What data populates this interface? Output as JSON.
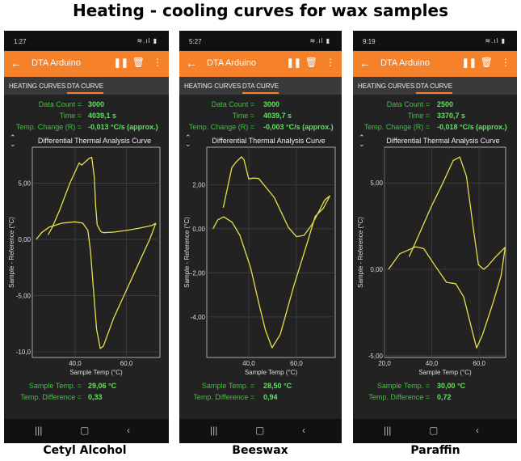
{
  "figure_title": "Heating - cooling curves for wax samples",
  "app": {
    "title": "DTA Arduino",
    "tabs": [
      "HEATING CURVES",
      "DTA CURVE"
    ],
    "active_tab": "DTA CURVE",
    "labels": {
      "data_count": "Data Count =",
      "time": "Time =",
      "temp_change": "Temp. Change (R) =",
      "sample_temp": "Sample Temp. =",
      "temp_difference": "Temp. Difference ="
    },
    "chart_title": "Differential Thermal Analysis Curve",
    "xlabel": "Sample Temp (°C)",
    "ylabel": "Sample - Reference (°C)",
    "icons": [
      "back-arrow-icon",
      "pause-icon",
      "trash-icon",
      "more-vert-icon",
      "expand-icon",
      "recents-icon",
      "home-icon",
      "back-icon"
    ],
    "colors": {
      "toolbar": "#f5822a",
      "background": "#222222",
      "curve": "#e8e04a",
      "value_text": "#5fe25f",
      "label_text": "#3cc43c"
    }
  },
  "phones": [
    {
      "caption": "Cetyl Alcohol",
      "status_time": "1:27",
      "data_count": "3000",
      "time": "4039,1 s",
      "temp_change": "-0,013 °C/s (approx.)",
      "sample_temp": "29,06 °C",
      "temp_difference": "0,33"
    },
    {
      "caption": "Beeswax",
      "status_time": "5:27",
      "data_count": "3000",
      "time": "4039,7 s",
      "temp_change": "-0,003 °C/s (approx.)",
      "sample_temp": "28,50 °C",
      "temp_difference": "0,94"
    },
    {
      "caption": "Paraffin",
      "status_time": "9:19",
      "data_count": "2500",
      "time": "3370,7 s",
      "temp_change": "-0,018 °C/s (approx.)",
      "sample_temp": "30,00 °C",
      "temp_difference": "0,72"
    }
  ],
  "chart_data": [
    {
      "type": "line",
      "title": "Differential Thermal Analysis Curve",
      "xlabel": "Sample Temp (°C)",
      "ylabel": "Sample - Reference (°C)",
      "xlim": [
        23.4,
        73
      ],
      "ylim": [
        -10.5,
        8.2
      ],
      "grid": true,
      "xticks": [
        {
          "v": 40,
          "label": "40,0"
        },
        {
          "v": 60,
          "label": "60,0"
        }
      ],
      "yticks": [
        {
          "v": 5,
          "label": "5,00"
        },
        {
          "v": 0,
          "label": "0,00"
        },
        {
          "v": -5,
          "label": "-5,00"
        },
        {
          "v": -10,
          "label": "-10,0"
        }
      ],
      "series": [
        {
          "x": [
            24.9,
            27,
            30,
            35,
            40,
            43,
            45,
            46,
            47,
            48.4,
            49.8,
            51,
            55,
            60,
            65,
            69,
            71.4
          ],
          "y": [
            0,
            0.6,
            1.1,
            1.45,
            1.56,
            1.45,
            0.8,
            -1,
            -4,
            -8,
            -9.7,
            -9.5,
            -7,
            -4.5,
            -2,
            0,
            1.44
          ]
        },
        {
          "x": [
            71.4,
            70,
            65,
            60,
            55,
            51,
            50,
            48.6,
            48,
            47.5,
            46.5,
            45.5,
            43.5,
            42.6,
            41.6,
            38,
            34,
            31,
            29.5
          ],
          "y": [
            1.44,
            1.25,
            1.0,
            0.8,
            0.65,
            0.6,
            0.7,
            1.3,
            3,
            5.5,
            7.3,
            7.2,
            6.8,
            6.6,
            6.8,
            5,
            2.6,
            1,
            0.4
          ]
        }
      ]
    },
    {
      "type": "line",
      "title": "Differential Thermal Analysis Curve",
      "xlabel": "Sample Temp (°C)",
      "ylabel": "Sample - Reference (°C)",
      "xlim": [
        22.4,
        76.3
      ],
      "ylim": [
        -5.84,
        3.7
      ],
      "grid": true,
      "xticks": [
        {
          "v": 40,
          "label": "40,0"
        },
        {
          "v": 60,
          "label": "60,0"
        }
      ],
      "yticks": [
        {
          "v": 2,
          "label": "2,00"
        },
        {
          "v": 0,
          "label": "0,00"
        },
        {
          "v": -2,
          "label": "-2,00"
        },
        {
          "v": -4,
          "label": "-4,00"
        }
      ],
      "series": [
        {
          "x": [
            25,
            27,
            29.5,
            33,
            36.3,
            40.8,
            44.2,
            47,
            49.8,
            53.2,
            58.9,
            64.5,
            67.9,
            71.3,
            74.1
          ],
          "y": [
            0,
            0.4,
            0.54,
            0.3,
            -0.3,
            -1.77,
            -3.36,
            -4.6,
            -5.4,
            -4.8,
            -2.6,
            -0.66,
            0.56,
            0.93,
            1.5
          ]
        },
        {
          "x": [
            74.1,
            71.9,
            69,
            66.6,
            63.2,
            60,
            56.6,
            50.7,
            44.2,
            41.9,
            40,
            38,
            36.9,
            34.5,
            32.9,
            29.3
          ],
          "y": [
            1.5,
            1.3,
            0.7,
            0.2,
            -0.3,
            -0.36,
            0.07,
            1.42,
            2.28,
            2.3,
            2.26,
            3.14,
            3.26,
            3.0,
            2.77,
            0.96
          ]
        }
      ]
    },
    {
      "type": "line",
      "title": "Differential Thermal Analysis Curve",
      "xlabel": "Sample Temp (°C)",
      "ylabel": "Sample - Reference (°C)",
      "xlim": [
        20,
        71.2
      ],
      "ylim": [
        -5.1,
        7.07
      ],
      "grid": true,
      "xticks": [
        {
          "v": 20,
          "label": "20,0"
        },
        {
          "v": 40,
          "label": "40,0"
        },
        {
          "v": 60,
          "label": "60,0"
        }
      ],
      "yticks": [
        {
          "v": 5,
          "label": "5,00"
        },
        {
          "v": 0,
          "label": "0,00"
        },
        {
          "v": -5,
          "label": "-5,00"
        }
      ],
      "series": [
        {
          "x": [
            21.7,
            26.4,
            33.2,
            36.6,
            41.1,
            46.2,
            50.1,
            53.5,
            56.9,
            58.9,
            61.4,
            65.9,
            69.3,
            71
          ],
          "y": [
            0,
            0.9,
            1.31,
            1.2,
            0.27,
            -0.75,
            -0.83,
            -1.6,
            -3.47,
            -4.55,
            -3.8,
            -1.92,
            -0.36,
            1.28
          ]
        },
        {
          "x": [
            71,
            67,
            63.6,
            61.9,
            59.7,
            57.4,
            54.6,
            51.8,
            49,
            44.5,
            40,
            35.5,
            30.4
          ],
          "y": [
            1.28,
            0.73,
            0.19,
            0,
            0.27,
            2.5,
            5.4,
            6.5,
            6.3,
            4.95,
            3.7,
            2.3,
            0.73
          ]
        }
      ]
    }
  ]
}
